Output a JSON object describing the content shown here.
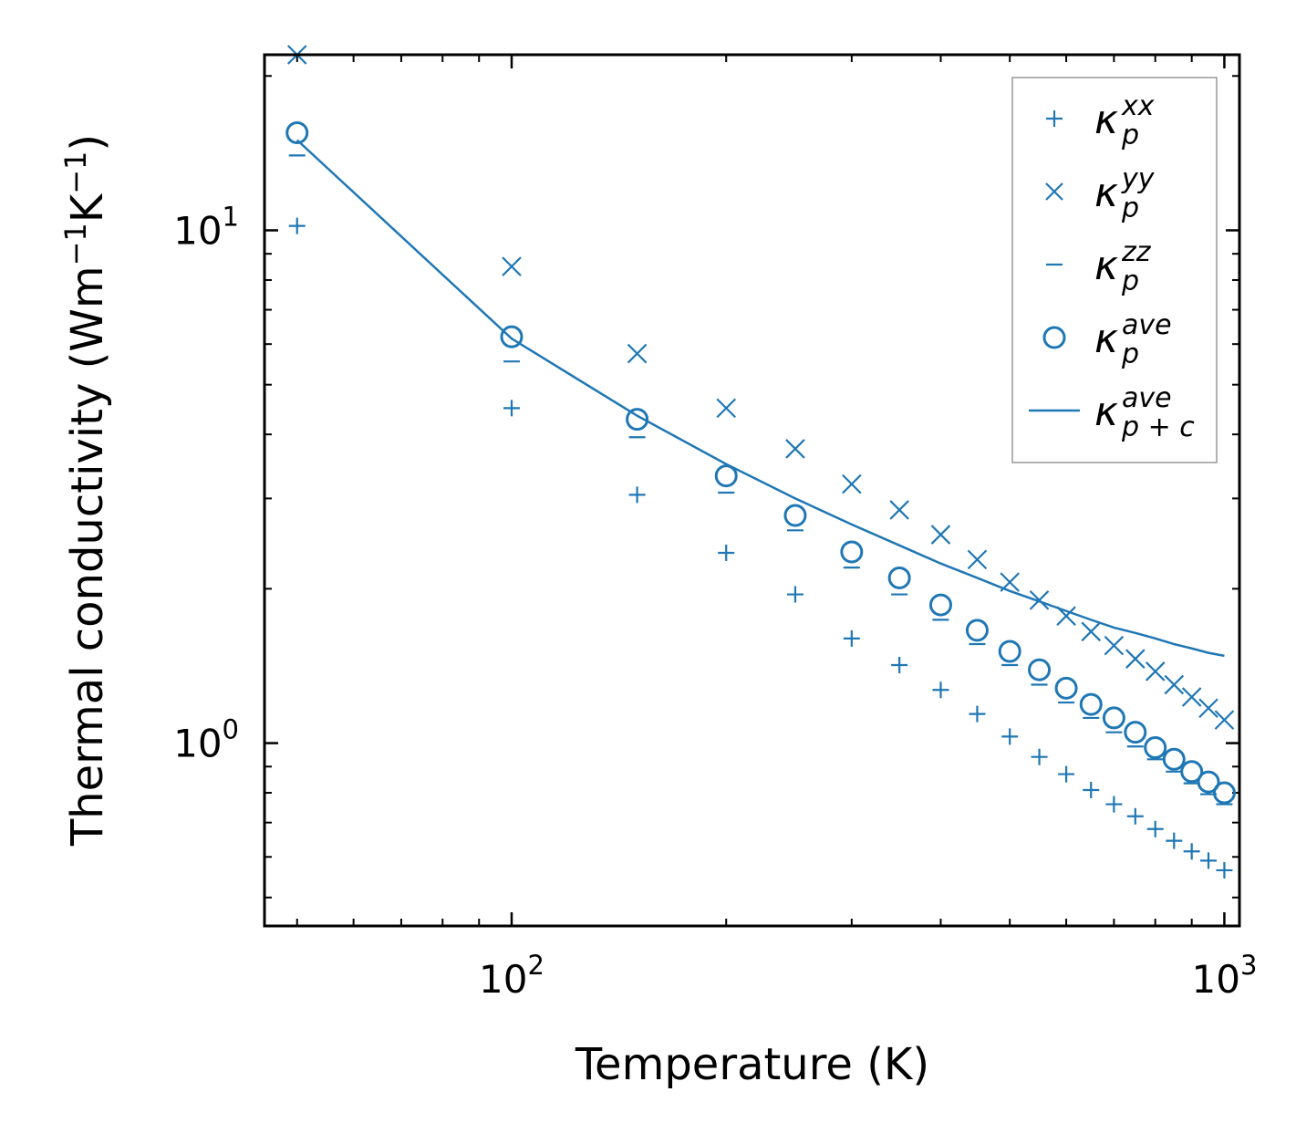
{
  "chart_data": {
    "type": "scatter",
    "xscale": "log",
    "yscale": "log",
    "xlim": [
      45,
      1050
    ],
    "ylim": [
      0.44,
      22
    ],
    "xlabel": "Temperature (K)",
    "ylabel": {
      "text": "Thermal conductivity (Wm",
      "sup1": "−1",
      "mid": "K",
      "sup2": "−1",
      "close": ")"
    },
    "xticks": [
      {
        "value": 100,
        "base": "10",
        "exp": "2"
      },
      {
        "value": 1000,
        "base": "10",
        "exp": "3"
      }
    ],
    "yticks": [
      {
        "value": 1,
        "base": "10",
        "exp": "0"
      },
      {
        "value": 10,
        "base": "10",
        "exp": "1"
      }
    ],
    "color": "#1f77b4",
    "x": [
      50,
      100,
      150,
      200,
      250,
      300,
      350,
      400,
      450,
      500,
      550,
      600,
      650,
      700,
      750,
      800,
      850,
      900,
      950,
      1000
    ],
    "series": [
      {
        "name": "kappa_p_xx",
        "marker": "plus",
        "legend": {
          "base": "κ",
          "sup": "xx",
          "sub": "p"
        },
        "values": [
          10.2,
          4.5,
          3.05,
          2.35,
          1.95,
          1.6,
          1.42,
          1.27,
          1.14,
          1.03,
          0.94,
          0.87,
          0.81,
          0.76,
          0.72,
          0.68,
          0.645,
          0.615,
          0.59,
          0.565
        ]
      },
      {
        "name": "kappa_p_yy",
        "marker": "x",
        "legend": {
          "base": "κ",
          "sup": "yy",
          "sub": "p"
        },
        "values": [
          22.0,
          8.5,
          5.75,
          4.5,
          3.75,
          3.2,
          2.85,
          2.55,
          2.28,
          2.06,
          1.9,
          1.77,
          1.65,
          1.55,
          1.46,
          1.38,
          1.3,
          1.23,
          1.17,
          1.11
        ]
      },
      {
        "name": "kappa_p_zz",
        "marker": "hline",
        "legend": {
          "base": "κ",
          "sup": "zz",
          "sub": "p"
        },
        "values": [
          14.0,
          5.55,
          3.95,
          3.08,
          2.6,
          2.2,
          1.95,
          1.74,
          1.56,
          1.42,
          1.3,
          1.2,
          1.12,
          1.05,
          0.985,
          0.93,
          0.88,
          0.835,
          0.795,
          0.76
        ]
      },
      {
        "name": "kappa_p_ave",
        "marker": "circle",
        "legend": {
          "base": "κ",
          "sup": "ave",
          "sub": "p"
        },
        "values": [
          15.5,
          6.2,
          4.28,
          3.32,
          2.78,
          2.36,
          2.1,
          1.86,
          1.66,
          1.51,
          1.39,
          1.28,
          1.19,
          1.12,
          1.05,
          0.98,
          0.93,
          0.88,
          0.84,
          0.8
        ]
      },
      {
        "name": "kappa_p+c_ave",
        "marker": "line",
        "legend": {
          "base": "κ",
          "sup": "ave",
          "sub": "p + c"
        },
        "values": [
          15.0,
          6.15,
          4.35,
          3.5,
          3.0,
          2.67,
          2.43,
          2.24,
          2.1,
          1.98,
          1.89,
          1.81,
          1.74,
          1.68,
          1.64,
          1.6,
          1.56,
          1.53,
          1.5,
          1.48
        ]
      }
    ]
  }
}
